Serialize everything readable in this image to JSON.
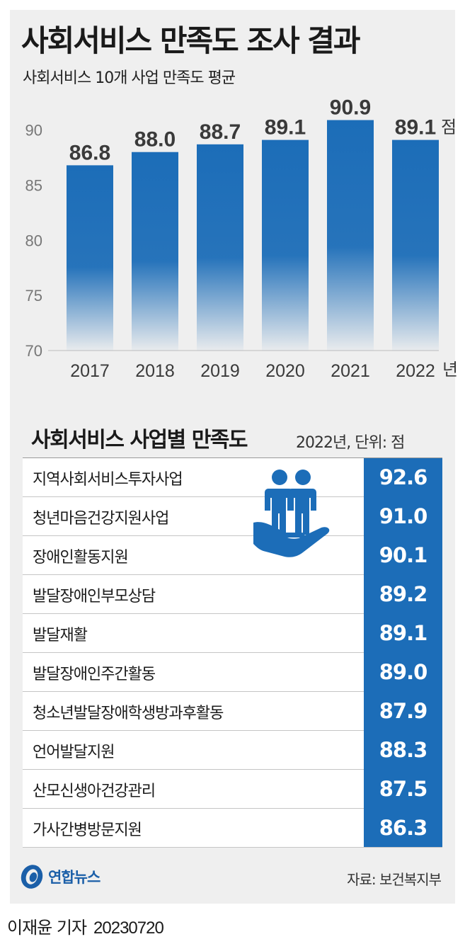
{
  "title": "사회서비스 만족도 조사 결과",
  "subtitle": "사회서비스 10개 사업 만족도 평균",
  "chart_data": {
    "type": "bar",
    "categories": [
      "2017",
      "2018",
      "2019",
      "2020",
      "2021",
      "2022"
    ],
    "values": [
      86.8,
      88.0,
      88.7,
      89.1,
      90.9,
      89.1
    ],
    "value_labels": [
      "86.8",
      "88.0",
      "88.7",
      "89.1",
      "90.9",
      "89.1"
    ],
    "value_unit": "점",
    "x_unit": "년",
    "ylim": [
      70,
      91
    ],
    "yticks": [
      70,
      75,
      80,
      85,
      90
    ],
    "grid": false,
    "bar_color": "#1c6db8"
  },
  "section2": {
    "title": "사회서비스 사업별 만족도",
    "note": "2022년, 단위: 점",
    "rows": [
      {
        "name": "지역사회서비스투자사업",
        "value": "92.6"
      },
      {
        "name": "청년마음건강지원사업",
        "value": "91.0"
      },
      {
        "name": "장애인활동지원",
        "value": "90.1"
      },
      {
        "name": "발달장애인부모상담",
        "value": "89.2"
      },
      {
        "name": "발달재활",
        "value": "89.1"
      },
      {
        "name": "발달장애인주간활동",
        "value": "89.0"
      },
      {
        "name": "청소년발달장애학생방과후활동",
        "value": "87.9"
      },
      {
        "name": "언어발달지원",
        "value": "88.3"
      },
      {
        "name": "산모신생아건강관리",
        "value": "87.5"
      },
      {
        "name": "가사간병방문지원",
        "value": "86.3"
      }
    ]
  },
  "icon": "people-in-hand-icon",
  "logo": "연합뉴스",
  "source": "자료: 보건복지부",
  "byline": {
    "author": "이재윤 기자",
    "date": "20230720"
  },
  "colors": {
    "accent": "#1c6db8",
    "background": "#efefef"
  }
}
